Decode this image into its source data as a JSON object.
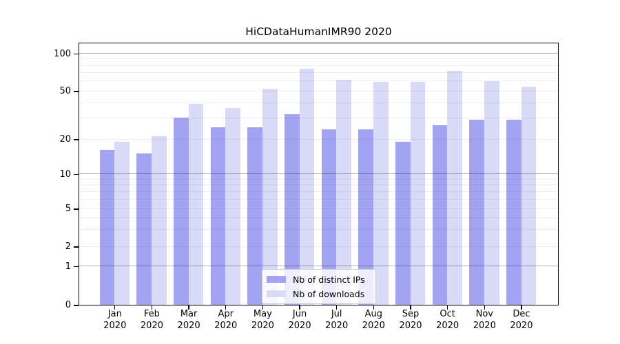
{
  "title": "HiCDataHumanIMR90 2020",
  "colors": {
    "ips": "#a3a3f4",
    "downloads": "#d9d9f8",
    "grid_minor": "rgba(0,0,0,0.065)",
    "grid_major": "rgba(0,0,0,0.30)",
    "axis": "#000000"
  },
  "chart_data": {
    "type": "bar",
    "title": "HiCDataHumanIMR90 2020",
    "categories": [
      "Jan 2020",
      "Feb 2020",
      "Mar 2020",
      "Apr 2020",
      "May 2020",
      "Jun 2020",
      "Jul 2020",
      "Aug 2020",
      "Sep 2020",
      "Oct 2020",
      "Nov 2020",
      "Dec 2020"
    ],
    "series": [
      {
        "name": "Nb of distinct IPs",
        "color_key": "ips",
        "values": [
          16,
          15,
          30,
          25,
          25,
          32,
          24,
          24,
          19,
          26,
          29,
          29
        ]
      },
      {
        "name": "Nb of downloads",
        "color_key": "downloads",
        "values": [
          19,
          21,
          39,
          36,
          52,
          75,
          61,
          59,
          59,
          72,
          60,
          54
        ]
      }
    ],
    "yaxis": {
      "scale": "log-like (linear below 1)",
      "tick_values": [
        0,
        1,
        2,
        5,
        10,
        20,
        50,
        100
      ],
      "tick_labels": [
        "0",
        "1",
        "2",
        "5",
        "10",
        "20",
        "50",
        "100"
      ],
      "grid_light_values": [
        2,
        3,
        4,
        5,
        6,
        7,
        8,
        9,
        20,
        30,
        40,
        50,
        60,
        70,
        80,
        90
      ],
      "grid_dark_values": [
        1,
        10,
        100
      ],
      "ylim_top_value": 120
    },
    "legend_position": "lower center",
    "grid": "on"
  }
}
